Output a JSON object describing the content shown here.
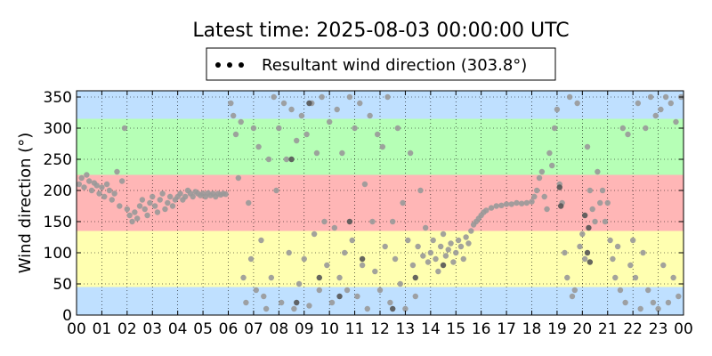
{
  "chart_data": {
    "type": "scatter",
    "title": "Latest time: 2025-08-03 00:00:00 UTC",
    "xlabel": "",
    "ylabel": "Wind direction (°)",
    "xlim": [
      0,
      24
    ],
    "ylim": [
      0,
      360
    ],
    "xticks": [
      "00",
      "01",
      "02",
      "03",
      "04",
      "05",
      "06",
      "07",
      "08",
      "09",
      "10",
      "11",
      "12",
      "13",
      "14",
      "15",
      "16",
      "17",
      "18",
      "19",
      "20",
      "21",
      "22",
      "23",
      "00"
    ],
    "yticks": [
      0,
      50,
      100,
      150,
      200,
      250,
      300,
      350
    ],
    "grid": true,
    "legend": {
      "placement": "top-center",
      "entries": [
        "Resultant wind direction (303.8°)"
      ]
    },
    "bands": [
      {
        "from": 0,
        "to": 45,
        "color": "#bfe0ff"
      },
      {
        "from": 45,
        "to": 135,
        "color": "#ffffb0"
      },
      {
        "from": 135,
        "to": 225,
        "color": "#ffb6b6"
      },
      {
        "from": 225,
        "to": 315,
        "color": "#b6ffb6"
      },
      {
        "from": 315,
        "to": 360,
        "color": "#bfe0ff"
      }
    ],
    "series": [
      {
        "name": "Resultant wind direction (303.8°)",
        "color": "#999999",
        "points": [
          [
            0.1,
            210
          ],
          [
            0.2,
            220
          ],
          [
            0.3,
            205
          ],
          [
            0.4,
            225
          ],
          [
            0.5,
            215
          ],
          [
            0.6,
            200
          ],
          [
            0.7,
            212
          ],
          [
            0.8,
            208
          ],
          [
            0.9,
            195
          ],
          [
            1.0,
            205
          ],
          [
            1.1,
            190
          ],
          [
            1.2,
            210
          ],
          [
            1.3,
            200
          ],
          [
            1.4,
            185
          ],
          [
            1.5,
            195
          ],
          [
            1.6,
            230
          ],
          [
            1.7,
            175
          ],
          [
            1.8,
            215
          ],
          [
            1.9,
            300
          ],
          [
            2.0,
            170
          ],
          [
            2.1,
            160
          ],
          [
            2.2,
            150
          ],
          [
            2.3,
            165
          ],
          [
            2.4,
            155
          ],
          [
            2.5,
            175
          ],
          [
            2.6,
            185
          ],
          [
            2.7,
            170
          ],
          [
            2.8,
            160
          ],
          [
            2.9,
            180
          ],
          [
            3.0,
            190
          ],
          [
            3.1,
            175
          ],
          [
            3.2,
            165
          ],
          [
            3.3,
            185
          ],
          [
            3.4,
            195
          ],
          [
            3.5,
            170
          ],
          [
            3.6,
            180
          ],
          [
            3.7,
            190
          ],
          [
            3.8,
            175
          ],
          [
            3.9,
            185
          ],
          [
            4.0,
            190
          ],
          [
            4.1,
            195
          ],
          [
            4.2,
            185
          ],
          [
            4.3,
            190
          ],
          [
            4.4,
            200
          ],
          [
            4.5,
            195
          ],
          [
            4.6,
            190
          ],
          [
            4.7,
            198
          ],
          [
            4.8,
            195
          ],
          [
            4.9,
            192
          ],
          [
            5.0,
            195
          ],
          [
            5.1,
            190
          ],
          [
            5.2,
            196
          ],
          [
            5.3,
            192
          ],
          [
            5.4,
            195
          ],
          [
            5.5,
            190
          ],
          [
            5.6,
            195
          ],
          [
            5.7,
            193
          ],
          [
            5.8,
            195
          ],
          [
            5.9,
            194
          ],
          [
            6.1,
            340
          ],
          [
            6.2,
            320
          ],
          [
            6.3,
            290
          ],
          [
            6.4,
            220
          ],
          [
            6.5,
            310
          ],
          [
            6.6,
            60
          ],
          [
            6.7,
            20
          ],
          [
            6.8,
            180
          ],
          [
            6.9,
            90
          ],
          [
            7.0,
            300
          ],
          [
            7.1,
            40
          ],
          [
            7.2,
            270
          ],
          [
            7.3,
            120
          ],
          [
            7.4,
            30
          ],
          [
            7.5,
            10
          ],
          [
            7.6,
            250
          ],
          [
            7.7,
            60
          ],
          [
            7.8,
            350
          ],
          [
            7.9,
            200
          ],
          [
            8.0,
            300
          ],
          [
            8.1,
            20
          ],
          [
            8.2,
            340
          ],
          [
            8.3,
            250
          ],
          [
            8.4,
            100
          ],
          [
            8.5,
            330
          ],
          [
            8.6,
            10
          ],
          [
            8.7,
            280
          ],
          [
            8.8,
            50
          ],
          [
            8.9,
            320
          ],
          [
            9.0,
            90
          ],
          [
            9.1,
            290
          ],
          [
            9.2,
            15
          ],
          [
            9.3,
            340
          ],
          [
            9.4,
            130
          ],
          [
            9.5,
            260
          ],
          [
            9.6,
            40
          ],
          [
            9.7,
            350
          ],
          [
            9.8,
            150
          ],
          [
            9.9,
            80
          ],
          [
            10.0,
            310
          ],
          [
            10.1,
            20
          ],
          [
            10.2,
            140
          ],
          [
            10.3,
            330
          ],
          [
            10.4,
            60
          ],
          [
            10.5,
            260
          ],
          [
            10.6,
            100
          ],
          [
            10.7,
            40
          ],
          [
            10.8,
            350
          ],
          [
            10.9,
            120
          ],
          [
            11.0,
            300
          ],
          [
            11.1,
            30
          ],
          [
            11.2,
            340
          ],
          [
            11.3,
            80
          ],
          [
            11.4,
            210
          ],
          [
            11.5,
            10
          ],
          [
            11.6,
            320
          ],
          [
            11.7,
            150
          ],
          [
            11.8,
            70
          ],
          [
            11.9,
            290
          ],
          [
            12.0,
            40
          ],
          [
            12.1,
            270
          ],
          [
            12.2,
            110
          ],
          [
            12.3,
            350
          ],
          [
            12.4,
            20
          ],
          [
            12.5,
            150
          ],
          [
            12.6,
            90
          ],
          [
            12.7,
            300
          ],
          [
            12.8,
            50
          ],
          [
            12.9,
            180
          ],
          [
            13.0,
            10
          ],
          [
            13.1,
            120
          ],
          [
            13.2,
            260
          ],
          [
            13.3,
            80
          ],
          [
            13.4,
            30
          ],
          [
            13.5,
            110
          ],
          [
            13.6,
            200
          ],
          [
            13.7,
            95
          ],
          [
            13.8,
            140
          ],
          [
            13.9,
            85
          ],
          [
            14.0,
            100
          ],
          [
            14.1,
            120
          ],
          [
            14.2,
            90
          ],
          [
            14.3,
            70
          ],
          [
            14.4,
            110
          ],
          [
            14.5,
            130
          ],
          [
            14.6,
            95
          ],
          [
            14.7,
            105
          ],
          [
            14.8,
            115
          ],
          [
            14.9,
            85
          ],
          [
            15.0,
            100
          ],
          [
            15.1,
            120
          ],
          [
            15.2,
            110
          ],
          [
            15.3,
            90
          ],
          [
            15.4,
            125
          ],
          [
            15.5,
            115
          ],
          [
            15.6,
            135
          ],
          [
            15.7,
            145
          ],
          [
            15.8,
            150
          ],
          [
            15.9,
            155
          ],
          [
            16.0,
            160
          ],
          [
            16.1,
            165
          ],
          [
            16.2,
            168
          ],
          [
            16.4,
            172
          ],
          [
            16.6,
            175
          ],
          [
            16.8,
            176
          ],
          [
            17.0,
            178
          ],
          [
            17.2,
            178
          ],
          [
            17.4,
            180
          ],
          [
            17.6,
            179
          ],
          [
            17.8,
            180
          ],
          [
            18.0,
            182
          ],
          [
            18.1,
            190
          ],
          [
            18.2,
            200
          ],
          [
            18.3,
            220
          ],
          [
            18.4,
            230
          ],
          [
            18.5,
            190
          ],
          [
            18.6,
            170
          ],
          [
            18.7,
            260
          ],
          [
            18.8,
            240
          ],
          [
            18.9,
            300
          ],
          [
            19.0,
            330
          ],
          [
            19.1,
            210
          ],
          [
            19.2,
            180
          ],
          [
            19.3,
            100
          ],
          [
            19.4,
            60
          ],
          [
            19.5,
            350
          ],
          [
            19.6,
            30
          ],
          [
            19.7,
            40
          ],
          [
            19.8,
            340
          ],
          [
            19.9,
            110
          ],
          [
            20.0,
            130
          ],
          [
            20.1,
            90
          ],
          [
            20.2,
            270
          ],
          [
            20.3,
            200
          ],
          [
            20.4,
            170
          ],
          [
            20.5,
            150
          ],
          [
            20.6,
            230
          ],
          [
            20.7,
            180
          ],
          [
            20.8,
            200
          ],
          [
            20.9,
            150
          ],
          [
            21.0,
            180
          ],
          [
            21.1,
            120
          ],
          [
            21.2,
            90
          ],
          [
            21.3,
            60
          ],
          [
            21.4,
            110
          ],
          [
            21.5,
            40
          ],
          [
            21.6,
            300
          ],
          [
            21.7,
            20
          ],
          [
            21.8,
            290
          ],
          [
            21.9,
            80
          ],
          [
            22.0,
            120
          ],
          [
            22.1,
            60
          ],
          [
            22.2,
            340
          ],
          [
            22.3,
            10
          ],
          [
            22.4,
            100
          ],
          [
            22.5,
            300
          ],
          [
            22.6,
            40
          ],
          [
            22.7,
            350
          ],
          [
            22.8,
            20
          ],
          [
            22.9,
            320
          ],
          [
            23.0,
            10
          ],
          [
            23.1,
            330
          ],
          [
            23.2,
            80
          ],
          [
            23.3,
            350
          ],
          [
            23.4,
            20
          ],
          [
            23.5,
            340
          ],
          [
            23.6,
            60
          ],
          [
            23.7,
            310
          ],
          [
            23.8,
            30
          ],
          [
            23.9,
            350
          ]
        ]
      },
      {
        "name": "",
        "color": "#555555",
        "points": [
          [
            8.5,
            250
          ],
          [
            8.7,
            20
          ],
          [
            9.2,
            340
          ],
          [
            9.6,
            60
          ],
          [
            10.4,
            30
          ],
          [
            10.8,
            150
          ],
          [
            11.3,
            90
          ],
          [
            12.5,
            10
          ],
          [
            13.4,
            60
          ],
          [
            14.5,
            80
          ],
          [
            19.1,
            205
          ],
          [
            19.15,
            175
          ],
          [
            20.1,
            160
          ],
          [
            20.2,
            100
          ],
          [
            20.25,
            140
          ],
          [
            20.3,
            85
          ]
        ]
      }
    ]
  }
}
